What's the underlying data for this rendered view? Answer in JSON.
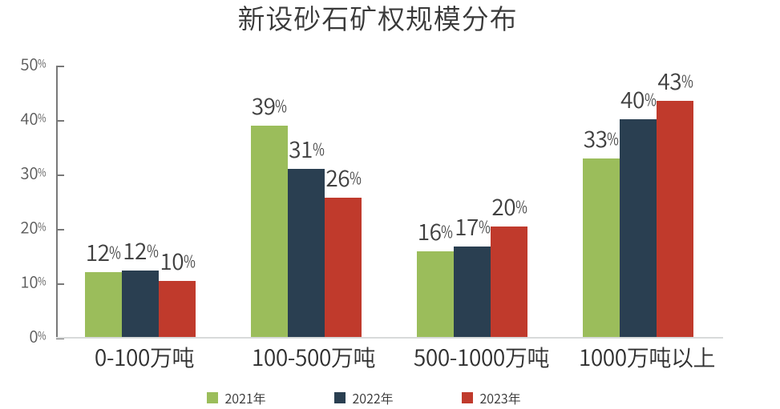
{
  "title": "新设砂石矿权规模分布",
  "chart_data": {
    "type": "bar",
    "title": "新设砂石矿权规模分布",
    "categories": [
      "0-100万吨",
      "100-500万吨",
      "500-1000万吨",
      "1000万吨以上"
    ],
    "series": [
      {
        "name": "2021年",
        "color": "#9BBD5B",
        "values": [
          12,
          39,
          16,
          33
        ],
        "labels": [
          "12%",
          "39%",
          "16%",
          "33%"
        ],
        "values_precise": [
          12.0,
          39.0,
          15.9,
          32.9
        ]
      },
      {
        "name": "2022年",
        "color": "#2A3F51",
        "values": [
          12,
          31,
          17,
          40
        ],
        "labels": [
          "12%",
          "31%",
          "17%",
          "40%"
        ],
        "values_precise": [
          12.3,
          31.0,
          16.8,
          40.2
        ]
      },
      {
        "name": "2023年",
        "color": "#C03A2C",
        "values": [
          10,
          26,
          20,
          43
        ],
        "labels": [
          "10%",
          "26%",
          "20%",
          "43%"
        ],
        "values_precise": [
          10.4,
          25.7,
          20.4,
          43.5
        ]
      }
    ],
    "xlabel": "",
    "ylabel": "",
    "y_axis": {
      "min": 0,
      "max": 50,
      "step": 10,
      "tick_labels": [
        "0%",
        "10%",
        "20%",
        "30%",
        "40%",
        "50%"
      ]
    },
    "legend_position": "bottom",
    "grid": false
  },
  "colors": {
    "background": "#FFFFFF",
    "axis_line": "#787878",
    "baseline": "#D8DADA",
    "title_text": "#383838",
    "value_label_text": "#404040",
    "category_label_text": "#2F2F2F",
    "y_axis_label_text": "#595959",
    "legend_text": "#333333"
  }
}
